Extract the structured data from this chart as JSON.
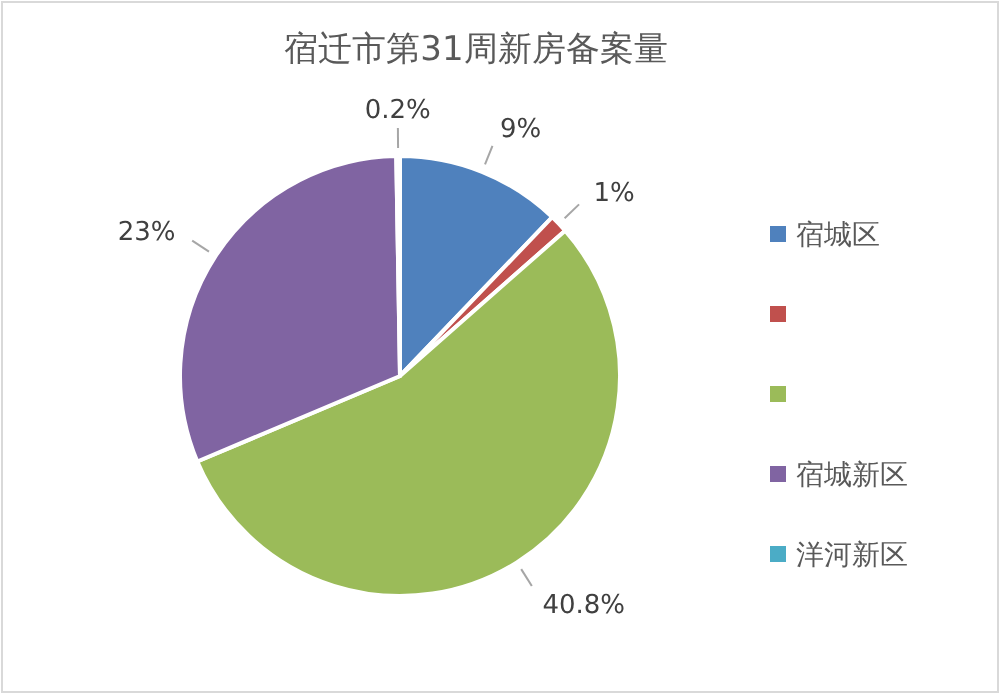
{
  "chart_data": {
    "type": "pie",
    "title": "宿迁市第31周新房备案量",
    "categories": [
      "宿城区",
      null,
      null,
      "宿城新区",
      "洋河新区"
    ],
    "values": [
      9,
      1,
      40.8,
      23,
      0.2
    ],
    "value_labels": [
      "9%",
      "1%",
      "40.8%",
      "23%",
      "0.2%"
    ],
    "colors": [
      "#4f81bd",
      "#c0504d",
      "#9bbb59",
      "#8064a2",
      "#4bacc6"
    ],
    "legend": "right"
  }
}
